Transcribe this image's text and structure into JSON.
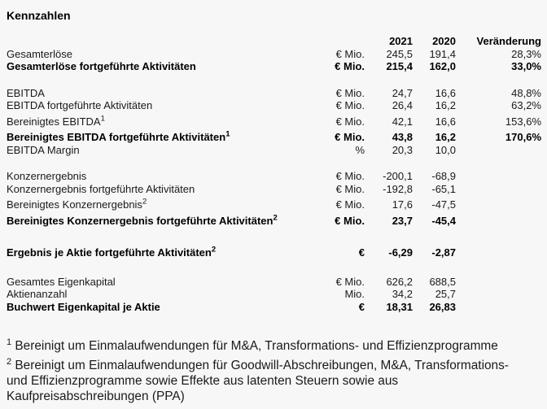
{
  "page": {
    "title": "Kennzahlen",
    "background_color": "#f7f7f7",
    "text_color": "#1a1a1a"
  },
  "table": {
    "columns": {
      "year1": "2021",
      "year2": "2020",
      "change": "Veränderung"
    },
    "sections": [
      {
        "rows": [
          {
            "label": "Gesamterlöse",
            "sup": "",
            "unit": "€ Mio.",
            "y2021": "245,5",
            "y2020": "191,4",
            "change": "28,3%",
            "bold": false
          },
          {
            "label": "Gesamterlöse fortgeführte Aktivitäten",
            "sup": "",
            "unit": "€ Mio.",
            "y2021": "215,4",
            "y2020": "162,0",
            "change": "33,0%",
            "bold": true
          }
        ]
      },
      {
        "rows": [
          {
            "label": "EBITDA",
            "sup": "",
            "unit": "€ Mio.",
            "y2021": "24,7",
            "y2020": "16,6",
            "change": "48,8%",
            "bold": false
          },
          {
            "label": "EBITDA fortgeführte Aktivitäten",
            "sup": "",
            "unit": "€ Mio.",
            "y2021": "26,4",
            "y2020": "16,2",
            "change": "63,2%",
            "bold": false
          },
          {
            "label": "Bereinigtes EBITDA",
            "sup": "1",
            "unit": "€ Mio.",
            "y2021": "42,1",
            "y2020": "16,6",
            "change": "153,6%",
            "bold": false
          },
          {
            "label": "Bereinigtes EBITDA fortgeführte Aktivitäten",
            "sup": "1",
            "unit": "€ Mio.",
            "y2021": "43,8",
            "y2020": "16,2",
            "change": "170,6%",
            "bold": true
          },
          {
            "label": "EBITDA Margin",
            "sup": "",
            "unit": "%",
            "y2021": "20,3",
            "y2020": "10,0",
            "change": "",
            "bold": false
          }
        ]
      },
      {
        "rows": [
          {
            "label": "Konzernergebnis",
            "sup": "",
            "unit": "€ Mio.",
            "y2021": "-200,1",
            "y2020": "-68,9",
            "change": "",
            "bold": false
          },
          {
            "label": "Konzernergebnis fortgeführte Aktivitäten",
            "sup": "",
            "unit": "€ Mio.",
            "y2021": "-192,8",
            "y2020": "-65,1",
            "change": "",
            "bold": false
          },
          {
            "label": "Bereinigtes Konzernergebnis",
            "sup": "2",
            "unit": "€ Mio.",
            "y2021": "17,6",
            "y2020": "-47,5",
            "change": "",
            "bold": false
          },
          {
            "label": "Bereinigtes Konzernergebnis fortgeführte Aktivitäten",
            "sup": "2",
            "unit": "€ Mio.",
            "y2021": "23,7",
            "y2020": "-45,4",
            "change": "",
            "bold": true
          }
        ]
      },
      {
        "rows": [
          {
            "label": "Ergebnis je Aktie fortgeführte Aktivitäten",
            "sup": "2",
            "unit": "€",
            "y2021": "-6,29",
            "y2020": "-2,87",
            "change": "",
            "bold": true
          }
        ]
      },
      {
        "rows": [
          {
            "label": "Gesamtes Eigenkapital",
            "sup": "",
            "unit": "€ Mio.",
            "y2021": "626,2",
            "y2020": "688,5",
            "change": "",
            "bold": false
          },
          {
            "label": "Aktienanzahl",
            "sup": "",
            "unit": "Mio.",
            "y2021": "34,2",
            "y2020": "25,7",
            "change": "",
            "bold": false
          },
          {
            "label": "Buchwert Eigenkapital je Aktie",
            "sup": "",
            "unit": "€",
            "y2021": "18,31",
            "y2020": "26,83",
            "change": "",
            "bold": true
          }
        ]
      }
    ]
  },
  "footnotes": [
    {
      "marker": "1",
      "text": "Bereinigt um Einmalaufwendungen für M&A, Transformations- und Effizienzprogramme"
    },
    {
      "marker": "2",
      "text": "Bereinigt um Einmalaufwendungen für Goodwill-Abschreibungen, M&A, Transformations- und Effizienzprogramme sowie Effekte aus latenten Steuern sowie aus Kaufpreisabschreibungen (PPA)"
    }
  ]
}
